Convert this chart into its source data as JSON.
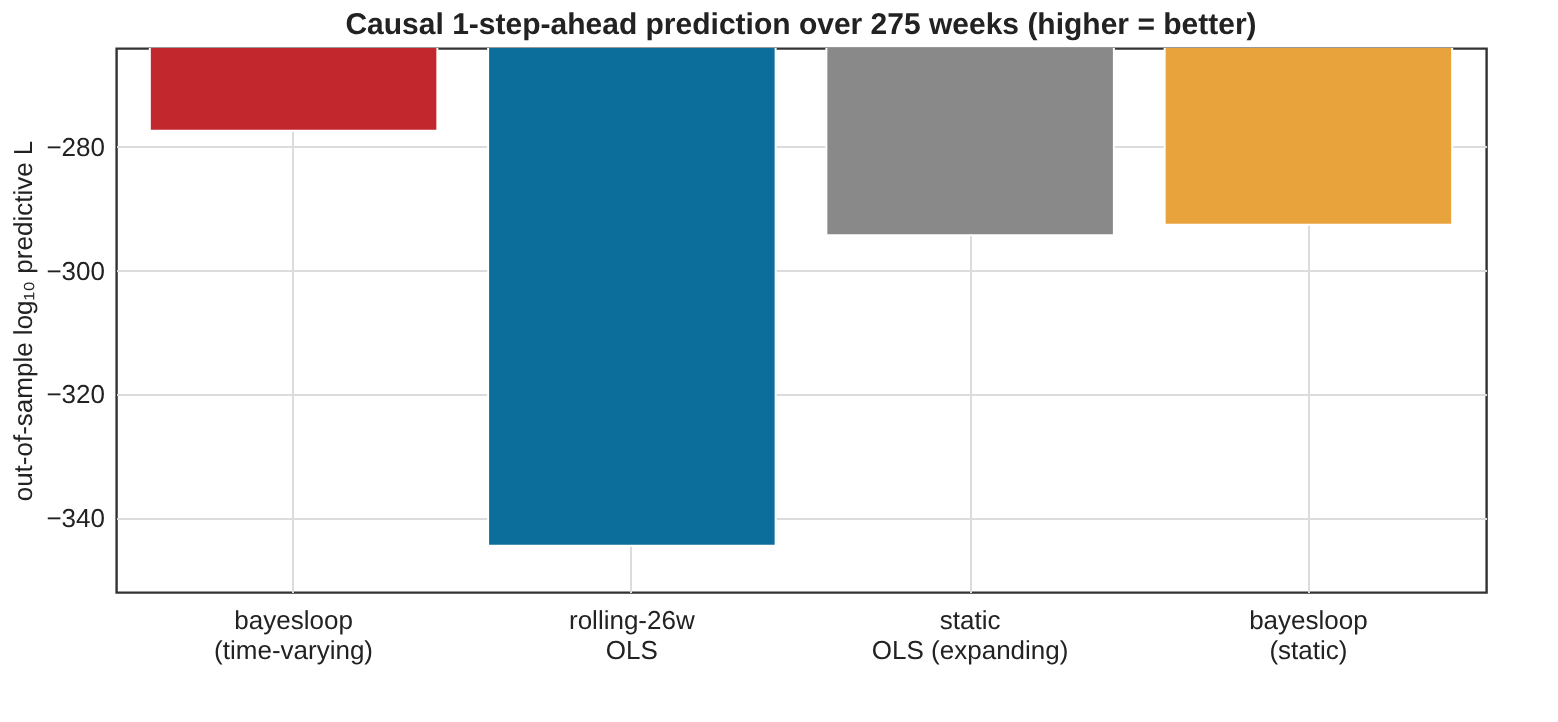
{
  "chart_data": {
    "type": "bar",
    "title": "Causal 1-step-ahead prediction over 275 weeks (higher = better)",
    "ylabel": "out-of-sample log₁₀ predictive L",
    "categories": [
      "bayesloop\n(time-varying)",
      "rolling-26w\nOLS",
      "static\nOLS (expanding)",
      "bayesloop\n(static)"
    ],
    "values": [
      -277.4,
      -344.5,
      -294.3,
      -292.6
    ],
    "colors": [
      "#c1272d",
      "#0c6e9a",
      "#898989",
      "#e8a33c"
    ],
    "ylim": [
      -352,
      -264
    ],
    "yticks": [
      -340,
      -320,
      -300,
      -280
    ],
    "grid": true
  }
}
